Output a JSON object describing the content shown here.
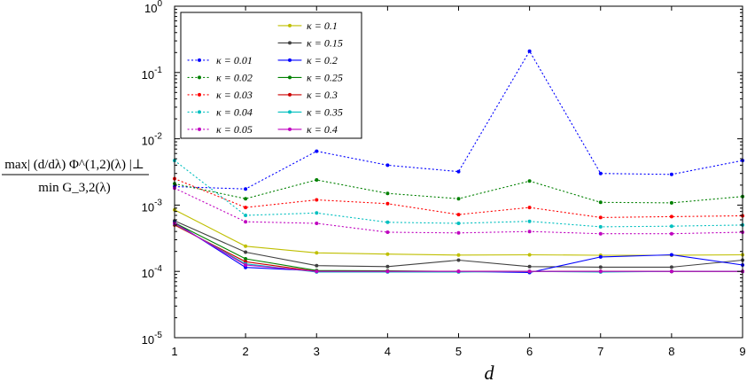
{
  "chart_data": {
    "type": "line",
    "xlabel": "d",
    "ylabel": {
      "numerator": "max| (d/dλ) Φ^(1,2)(λ) |⊥",
      "denominator": "min G_3,2(λ)"
    },
    "yscale": "log",
    "xlim": [
      1,
      9
    ],
    "ylim": [
      1e-05,
      1
    ],
    "x": [
      1,
      2,
      3,
      4,
      5,
      6,
      7,
      8,
      9
    ],
    "x_tick_labels": [
      "1",
      "2",
      "3",
      "4",
      "5",
      "6",
      "7",
      "8",
      "9"
    ],
    "y_ticks": [
      {
        "value": 1e-05,
        "base": "10",
        "exp": "-5"
      },
      {
        "value": 0.0001,
        "base": "10",
        "exp": "-4"
      },
      {
        "value": 0.001,
        "base": "10",
        "exp": "-3"
      },
      {
        "value": 0.01,
        "base": "10",
        "exp": "-2"
      },
      {
        "value": 0.1,
        "base": "10",
        "exp": "-1"
      },
      {
        "value": 1,
        "base": "10",
        "exp": "0"
      }
    ],
    "grid": false,
    "legend_placement": "top-left",
    "series": [
      {
        "name": "κ = 0.01",
        "color": "#0000ff",
        "style": "dotted",
        "values": [
          0.0019,
          0.00175,
          0.0065,
          0.004,
          0.0032,
          0.21,
          0.003,
          0.0029,
          0.0047
        ]
      },
      {
        "name": "κ = 0.02",
        "color": "#008000",
        "style": "dotted",
        "values": [
          0.0021,
          0.00125,
          0.0024,
          0.0015,
          0.00125,
          0.0023,
          0.0011,
          0.00108,
          0.00135
        ]
      },
      {
        "name": "κ = 0.03",
        "color": "#ff0000",
        "style": "dotted",
        "values": [
          0.0025,
          0.00092,
          0.0012,
          0.00105,
          0.00072,
          0.00092,
          0.00065,
          0.00067,
          0.00069
        ]
      },
      {
        "name": "κ = 0.04",
        "color": "#00bfbf",
        "style": "dotted",
        "values": [
          0.0047,
          0.0007,
          0.00076,
          0.00055,
          0.00053,
          0.00057,
          0.00047,
          0.00048,
          0.0005
        ]
      },
      {
        "name": "κ = 0.05",
        "color": "#bf00bf",
        "style": "dotted",
        "values": [
          0.0018,
          0.00056,
          0.00053,
          0.00039,
          0.00038,
          0.0004,
          0.00037,
          0.00037,
          0.00039
        ]
      },
      {
        "name": "κ = 0.1",
        "color": "#bfbf00",
        "style": "solid",
        "values": [
          0.00085,
          0.00024,
          0.00019,
          0.000182,
          0.000176,
          0.000178,
          0.000175,
          0.000175,
          0.000178
        ]
      },
      {
        "name": "κ = 0.15",
        "color": "#404040",
        "style": "solid",
        "values": [
          0.00058,
          0.000195,
          0.000122,
          0.000118,
          0.000148,
          0.000118,
          0.000116,
          0.000116,
          0.000148
        ]
      },
      {
        "name": "κ = 0.2",
        "color": "#0000ff",
        "style": "solid",
        "values": [
          0.00055,
          0.000115,
          0.000102,
          0.0001,
          0.0001,
          9.6e-05,
          0.000165,
          0.000178,
          0.000125
        ]
      },
      {
        "name": "κ = 0.25",
        "color": "#008000",
        "style": "solid",
        "values": [
          0.00054,
          0.000155,
          0.000103,
          0.000102,
          0.0001,
          0.0001,
          0.0001,
          0.0001,
          0.0001
        ]
      },
      {
        "name": "κ = 0.3",
        "color": "#cc0000",
        "style": "solid",
        "values": [
          0.0005,
          0.00014,
          0.0001,
          0.0001,
          0.0001,
          0.0001,
          0.0001,
          0.0001,
          0.0001
        ]
      },
      {
        "name": "κ = 0.35",
        "color": "#00bfbf",
        "style": "solid",
        "values": [
          0.00052,
          0.00013,
          9.8e-05,
          9.8e-05,
          9.8e-05,
          0.0001,
          9.8e-05,
          0.0001,
          0.0001
        ]
      },
      {
        "name": "κ = 0.4",
        "color": "#bf00bf",
        "style": "solid",
        "values": [
          0.00053,
          0.000125,
          0.0001,
          0.0001,
          0.0001,
          0.0001,
          0.0001,
          0.0001,
          0.0001
        ]
      }
    ]
  }
}
